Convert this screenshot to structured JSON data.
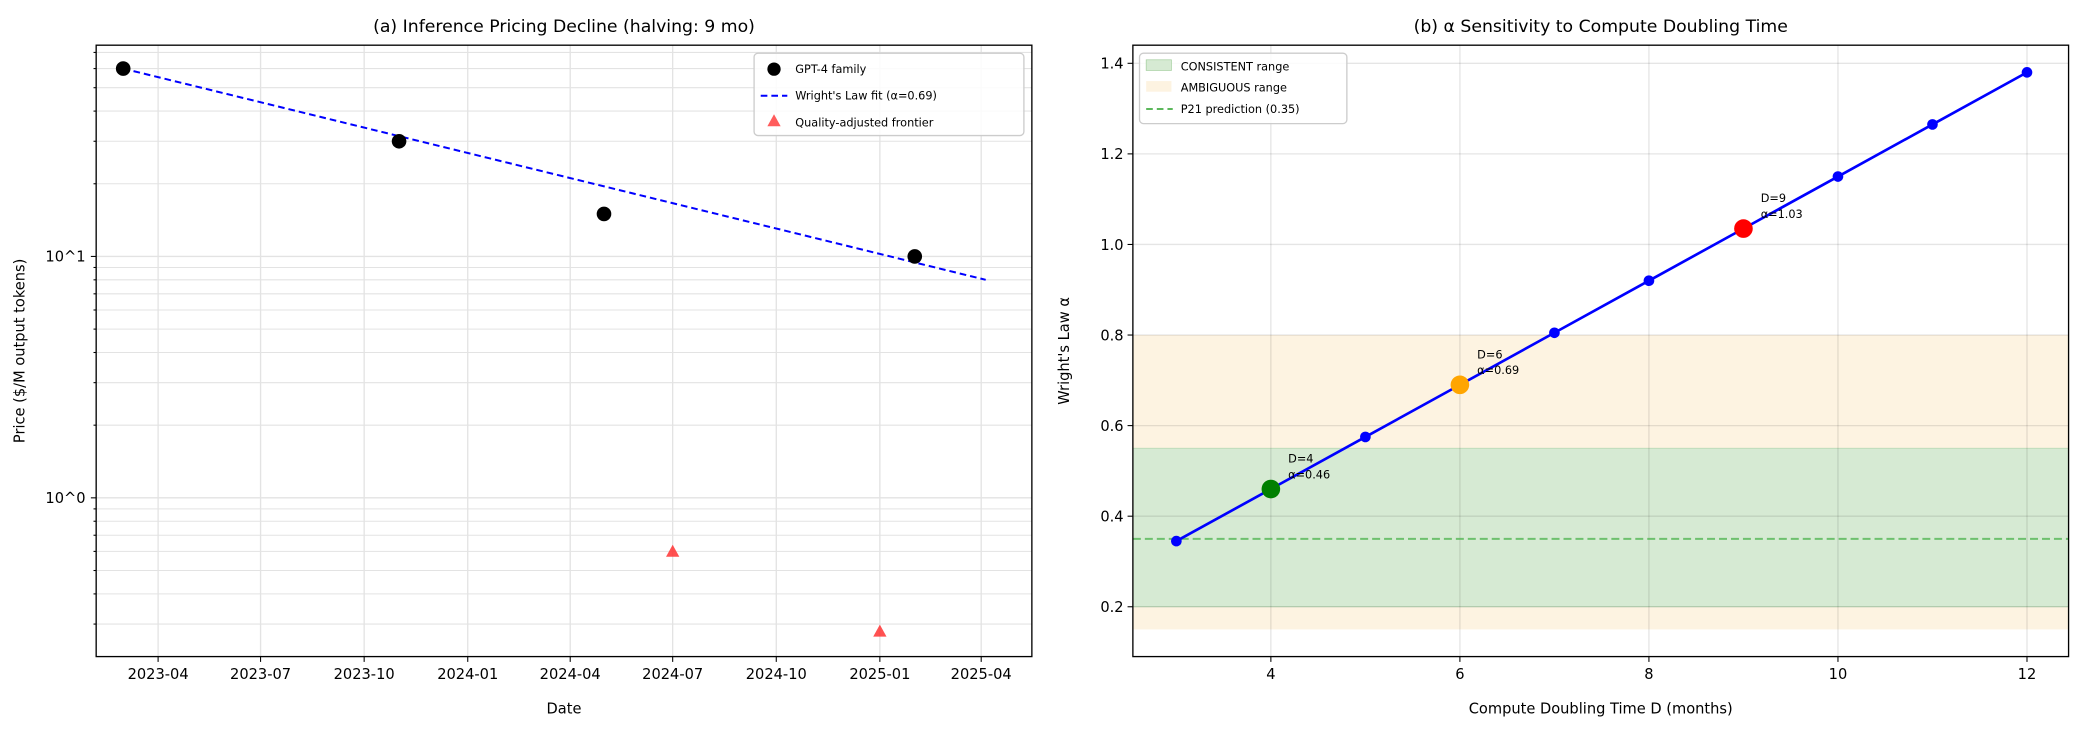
{
  "chart_data": [
    {
      "type": "scatter",
      "title": "(a) Inference Pricing Decline (halving: 9 mo)",
      "xlabel": "Date",
      "ylabel": "Price ($/M output tokens)",
      "yscale": "log",
      "xlim": [
        "2023-02-05",
        "2025-05-16"
      ],
      "ylim": [
        0.22,
        75
      ],
      "x_ticks": [
        "2023-04",
        "2023-07",
        "2023-10",
        "2024-01",
        "2024-04",
        "2024-07",
        "2024-10",
        "2025-01",
        "2025-04"
      ],
      "y_ticks": [
        {
          "value": 1,
          "label": "10^0"
        },
        {
          "value": 10,
          "label": "10^1"
        }
      ],
      "grid": true,
      "legend_position": "top-right",
      "series": [
        {
          "name": "GPT-4 family",
          "kind": "scatter",
          "marker": "circle",
          "color": "#000000",
          "x": [
            "2023-03-01",
            "2023-11-01",
            "2024-05-01",
            "2025-02-01"
          ],
          "y": [
            60,
            30,
            15,
            10
          ]
        },
        {
          "name": "Wright's Law fit (α=0.69)",
          "kind": "line",
          "style": "dashed",
          "color": "#0000ff",
          "x": [
            "2023-03-01",
            "2025-04-05"
          ],
          "y": [
            60,
            8
          ]
        },
        {
          "name": "Quality-adjusted frontier",
          "kind": "scatter",
          "marker": "triangle",
          "color": "#ff3333",
          "x": [
            "2024-07-01",
            "2025-01-01"
          ],
          "y": [
            0.6,
            0.28
          ]
        }
      ]
    },
    {
      "type": "line",
      "title": "(b) α Sensitivity to Compute Doubling Time",
      "xlabel": "Compute Doubling Time D (months)",
      "ylabel": "Wright's Law α",
      "xlim": [
        2.54,
        12.44
      ],
      "ylim": [
        0.09,
        1.44
      ],
      "x_ticks": [
        4,
        6,
        8,
        10,
        12
      ],
      "y_ticks": [
        0.2,
        0.4,
        0.6,
        0.8,
        1.0,
        1.2,
        1.4
      ],
      "grid": true,
      "legend_position": "top-left",
      "series": [
        {
          "kind": "line",
          "color": "#0000ff",
          "x": [
            3,
            4,
            5,
            6,
            7,
            8,
            9,
            10,
            11,
            12
          ],
          "y": [
            0.345,
            0.46,
            0.575,
            0.69,
            0.805,
            0.92,
            1.035,
            1.15,
            1.265,
            1.38
          ]
        }
      ],
      "bands": [
        {
          "name": "AMBIGUOUS range",
          "y0": 0.15,
          "y1": 0.8,
          "color": "#fdf3e1"
        },
        {
          "name": "CONSISTENT range",
          "y0": 0.2,
          "y1": 0.55,
          "color": "#d6ead3"
        }
      ],
      "hlines": [
        {
          "name": "P21 prediction (0.35)",
          "y": 0.35,
          "color": "#5cb85c",
          "style": "dashed"
        }
      ],
      "highlights": [
        {
          "x": 4,
          "y": 0.46,
          "color": "#008000",
          "label_d": "D=4",
          "label_a": "α=0.46"
        },
        {
          "x": 6,
          "y": 0.69,
          "color": "#ffa500",
          "label_d": "D=6",
          "label_a": "α=0.69"
        },
        {
          "x": 9,
          "y": 1.035,
          "color": "#ff0000",
          "label_d": "D=9",
          "label_a": "α=1.03"
        }
      ]
    }
  ]
}
